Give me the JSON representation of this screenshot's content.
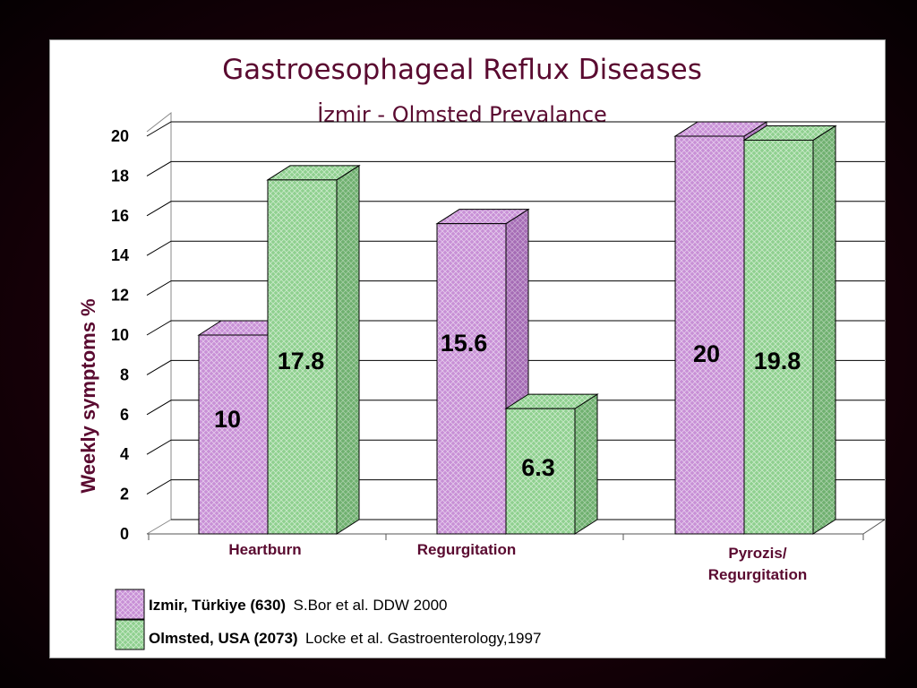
{
  "chart_data": {
    "type": "bar",
    "title": "Gastroesophageal Reflux Diseases",
    "subtitle": "İzmir - Olmsted Prevalance",
    "ylabel": "Weekly symptoms %",
    "xlabel": "",
    "ylim": [
      0,
      20
    ],
    "yticks": [
      0,
      2,
      4,
      6,
      8,
      10,
      12,
      14,
      16,
      18,
      20
    ],
    "categories": [
      "Heartburn",
      "Regurgitation",
      "Pyrozis/ Regurgitation"
    ],
    "category_lines": [
      [
        "Heartburn"
      ],
      [
        "Regurgitation"
      ],
      [
        "Pyrozis/",
        "Regurgitation"
      ]
    ],
    "series": [
      {
        "name": "Izmir, Türkiye (630)",
        "source": "S.Bor et al. DDW 2000",
        "color": "#c890d6",
        "values": [
          10,
          15.6,
          20
        ],
        "labels": [
          "10",
          "15.6",
          "20"
        ]
      },
      {
        "name": "Olmsted, USA (2073)",
        "source": "Locke et al. Gastroenterology,1997",
        "color": "#8fd08f",
        "values": [
          17.8,
          6.3,
          19.8
        ],
        "labels": [
          "17.8",
          "6.3",
          "19.8"
        ]
      }
    ],
    "grid": true,
    "legend_position": "bottom-left",
    "style": "3d-bar"
  }
}
